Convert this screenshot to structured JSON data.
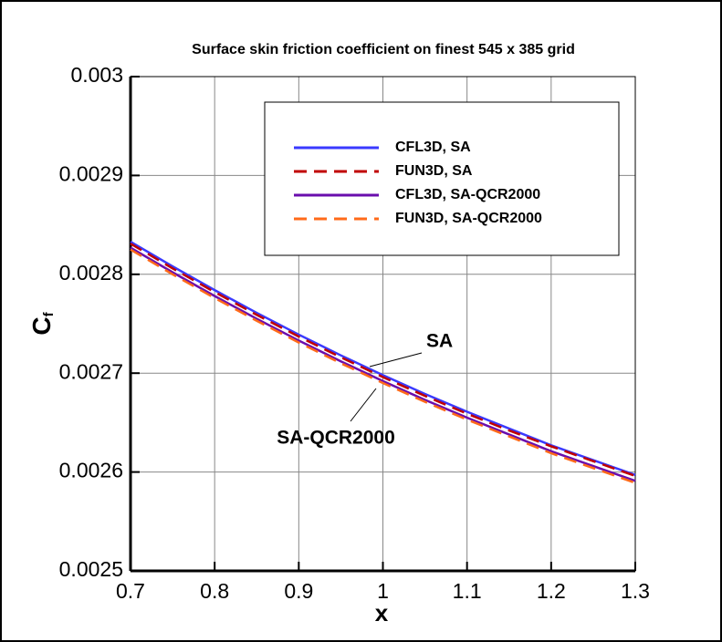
{
  "chart_data": {
    "type": "line",
    "title": "Surface skin friction coefficient on finest 545 x 385 grid",
    "xlabel": "x",
    "ylabel": "Cf",
    "x": [
      0.7,
      0.75,
      0.8,
      0.85,
      0.9,
      0.95,
      1.0,
      1.05,
      1.1,
      1.15,
      1.2,
      1.25,
      1.3
    ],
    "series": [
      {
        "name": "CFL3D, SA",
        "color": "#3a3aff",
        "dash": false,
        "values": [
          0.002833,
          0.002808,
          0.002784,
          0.002761,
          0.002739,
          0.002718,
          0.002698,
          0.002679,
          0.002661,
          0.002644,
          0.002627,
          0.002612,
          0.002597
        ]
      },
      {
        "name": "FUN3D, SA",
        "color": "#c00000",
        "dash": true,
        "values": [
          0.002831,
          0.002806,
          0.002782,
          0.002759,
          0.002737,
          0.002716,
          0.002696,
          0.002677,
          0.002659,
          0.002642,
          0.002626,
          0.002611,
          0.002596
        ]
      },
      {
        "name": "CFL3D, SA-QCR2000",
        "color": "#6a0dad",
        "dash": false,
        "values": [
          0.002827,
          0.002802,
          0.002778,
          0.002755,
          0.002733,
          0.002712,
          0.002692,
          0.002673,
          0.002655,
          0.002638,
          0.002621,
          0.002606,
          0.002591
        ]
      },
      {
        "name": "FUN3D, SA-QCR2000",
        "color": "#ff6a1a",
        "dash": true,
        "values": [
          0.002825,
          0.0028,
          0.002776,
          0.002753,
          0.002731,
          0.00271,
          0.00269,
          0.002671,
          0.002653,
          0.002636,
          0.002619,
          0.002604,
          0.002589
        ]
      }
    ],
    "annotations": [
      "SA",
      "SA-QCR2000"
    ],
    "xlim": [
      0.7,
      1.3
    ],
    "xticks": [
      0.7,
      0.8,
      0.9,
      1,
      1.1,
      1.2,
      1.3
    ],
    "ylim": [
      0.0025,
      0.003
    ],
    "yticks": [
      0.0025,
      0.0026,
      0.0027,
      0.0028,
      0.0029,
      0.003
    ],
    "grid": true
  }
}
